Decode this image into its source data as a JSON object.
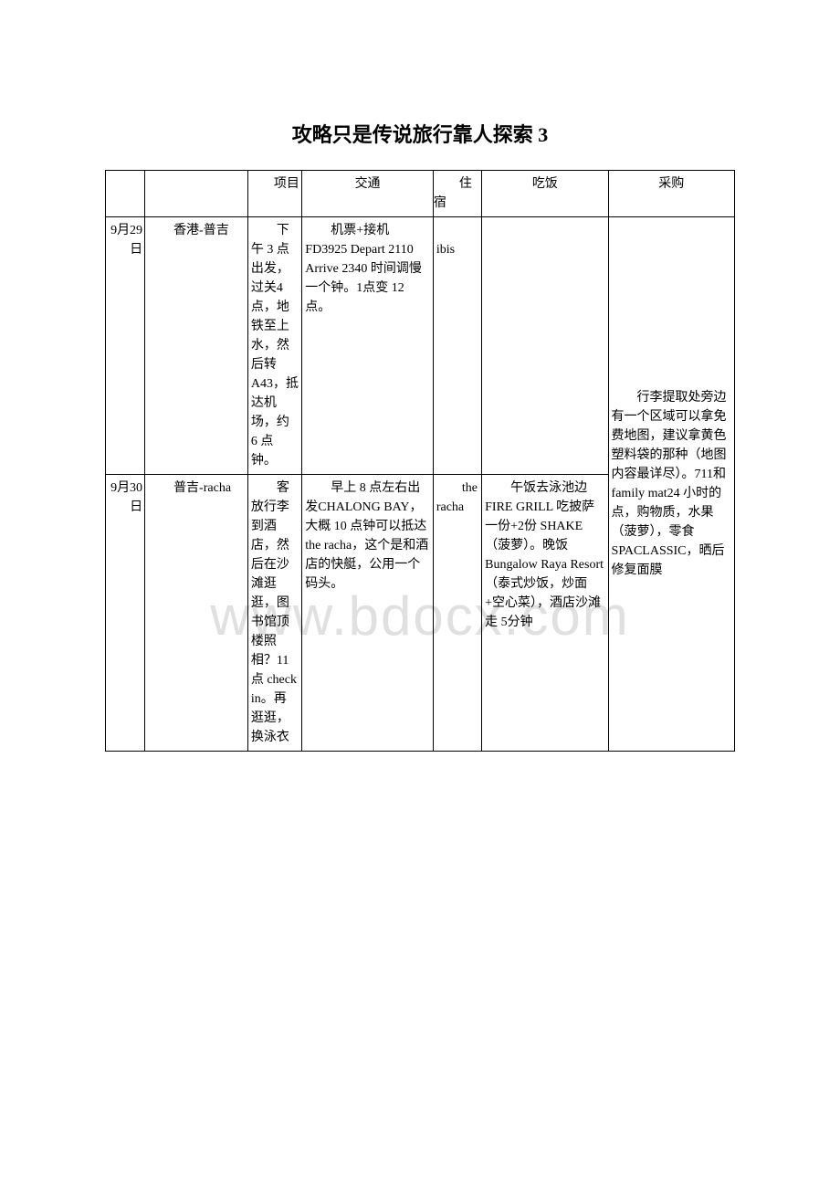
{
  "page": {
    "title": "攻略只是传说旅行靠人探索 3",
    "watermark": "www.bdocx.com"
  },
  "table": {
    "headers": {
      "date": "",
      "route": "",
      "item": "项目",
      "transport": "交通",
      "stay": "住宿",
      "food": "吃饭",
      "shopping": "采购"
    },
    "rows": [
      {
        "date": "9月29日",
        "route": "香港-普吉",
        "item": "下午 3 点出发，过关4 点，地铁至上水，然后转A43，抵达机场，约 6 点钟。",
        "transport": "机票+接机 FD3925 Depart 2110 Arrive 2340 时间调慢一个钟。1点变 12 点。",
        "stay": "ibis",
        "food": ""
      },
      {
        "date": "9月30日",
        "route": "普吉-racha",
        "item": "客放行李到酒店，然后在沙滩逛逛，图书馆顶楼照相？11点 check in。再逛逛，换泳衣",
        "transport": "早上 8 点左右出发CHALONG BAY，大概 10 点钟可以抵达 the racha，这个是和酒店的快艇，公用一个码头。",
        "stay": "the racha",
        "food": "午饭去泳池边 FIRE GRILL 吃披萨一份+2份 SHAKE（菠萝）。晚饭Bungalow Raya Resort（泰式炒饭，炒面+空心菜），酒店沙滩走 5分钟"
      }
    ],
    "shopping_merged": "行李提取处旁边有一个区域可以拿免费地图，建议拿黄色塑料袋的那种（地图内容最详尽）。711和 family mat24 小时的点，购物质，水果（菠萝），零食 SPACLASSIC，晒后修复面膜"
  },
  "styles": {
    "background_color": "#ffffff",
    "text_color": "#000000",
    "border_color": "#000000",
    "watermark_color": "#e0e0e0",
    "title_fontsize": 22,
    "body_fontsize": 14,
    "watermark_fontsize": 60
  }
}
